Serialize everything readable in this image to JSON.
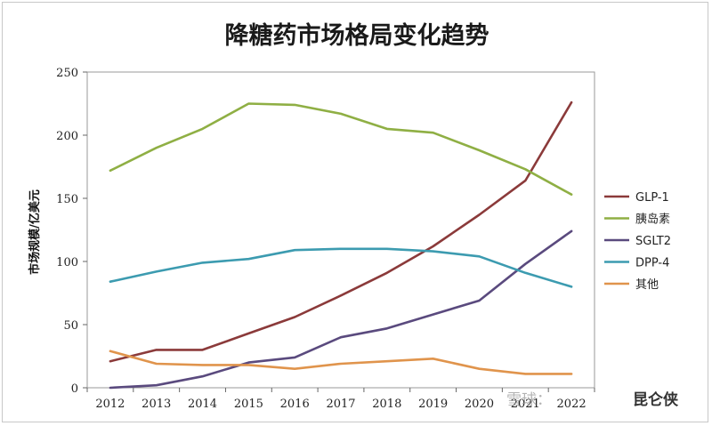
{
  "chart_data": {
    "type": "line",
    "title": "降糖药市场格局变化趋势",
    "ylabel": "市场规模/亿美元",
    "xlabel": "",
    "x": [
      "2012",
      "2013",
      "2014",
      "2015",
      "2016",
      "2017",
      "2018",
      "2019",
      "2020",
      "2021",
      "2022"
    ],
    "ylim": [
      0,
      250
    ],
    "yticks": [
      0,
      50,
      100,
      150,
      200,
      250
    ],
    "grid": false,
    "legend_position": "right",
    "series": [
      {
        "name": "GLP-1",
        "color": "#8b3a3a",
        "values": [
          21,
          30,
          30,
          43,
          56,
          73,
          91,
          112,
          137,
          164,
          226
        ]
      },
      {
        "name": "胰岛素",
        "color": "#8faf44",
        "values": [
          172,
          190,
          205,
          225,
          224,
          217,
          205,
          202,
          188,
          173,
          153
        ]
      },
      {
        "name": "SGLT2",
        "color": "#5a4a7e",
        "values": [
          0,
          2,
          9,
          20,
          24,
          40,
          47,
          58,
          69,
          98,
          124
        ]
      },
      {
        "name": "DPP-4",
        "color": "#3c9bb0",
        "values": [
          84,
          92,
          99,
          102,
          109,
          110,
          110,
          108,
          104,
          91,
          80
        ]
      },
      {
        "name": "其他",
        "color": "#e0944c",
        "values": [
          29,
          19,
          18,
          18,
          15,
          19,
          21,
          23,
          15,
          11,
          11
        ]
      }
    ]
  },
  "watermark": {
    "left": "雪球：",
    "right": "昆仑侠"
  }
}
